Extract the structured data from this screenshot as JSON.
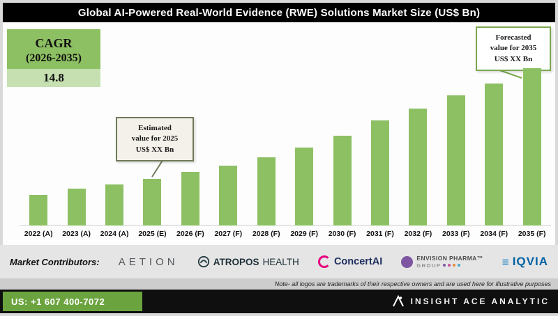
{
  "title": "Global AI-Powered Real-World Evidence (RWE) Solutions Market Size (US$ Bn)",
  "cagr": {
    "line1": "CAGR",
    "line2": "(2026-2035)",
    "value": "14.8"
  },
  "callouts": {
    "estimated": {
      "line1": "Estimated",
      "line2": "value for 2025",
      "line3": "US$ XX Bn"
    },
    "forecasted": {
      "line1": "Forecasted",
      "line2": "value for 2035",
      "line3": "US$ XX Bn"
    }
  },
  "chart_data": {
    "type": "bar",
    "title": "Global AI-Powered Real-World Evidence (RWE) Solutions Market Size (US$ Bn)",
    "categories": [
      "2022 (A)",
      "2023 (A)",
      "2024 (A)",
      "2025 (E)",
      "2026 (F)",
      "2027 (F)",
      "2028 (F)",
      "2029 (F)",
      "2030 (F)",
      "2031 (F)",
      "2032 (F)",
      "2033 (F)",
      "2034 (F)",
      "2035 (F)"
    ],
    "values": [
      41,
      50,
      56,
      63,
      73,
      81,
      92,
      106,
      122,
      142,
      158,
      176,
      192,
      213
    ],
    "value_note": "Actual values masked on chart as 'US$ XX Bn'; values above are relative bar heights estimated from pixels",
    "cagr_percent": 14.8,
    "xlabel": "",
    "ylabel": "",
    "grid": false,
    "legend": false,
    "bar_color": "#8dc063"
  },
  "contributors": {
    "label": "Market Contributors:",
    "logos": [
      {
        "name": "aetion",
        "text": "AETION"
      },
      {
        "name": "atropos-health",
        "text_bold": "ATROPOS",
        "text_regular": "HEALTH"
      },
      {
        "name": "concertai",
        "text": "ConcertAI"
      },
      {
        "name": "envision-pharma-group",
        "line1": "ENVISION PHARMA™",
        "line2": "GROUP"
      },
      {
        "name": "iqvia",
        "text": "IQVIA"
      }
    ]
  },
  "note": "Note- all logos are trademarks of their respective owners and are used here for illustrative purposes",
  "footer": {
    "phone": "US: +1 607 400-7072",
    "brand": "INSIGHT ACE ANALYTIC"
  },
  "icons": {
    "atropos": "circle-knot-icon",
    "concertai": "letter-c-ring-icon",
    "envision": "purple-circle-icon",
    "iqvia": "three-bars-icon",
    "insightace": "triangle-a-dot-icon"
  },
  "colors": {
    "bar_green": "#8dc063",
    "footer_green": "#6ba43e",
    "title_bg": "#000000",
    "iqvia_blue": "#0072bc",
    "concertai_magenta": "#e6007d",
    "envision_purple": "#7d55a0",
    "envision_dots": [
      "#7d55a0",
      "#c9519e",
      "#e98a3c",
      "#49a7c8"
    ]
  }
}
